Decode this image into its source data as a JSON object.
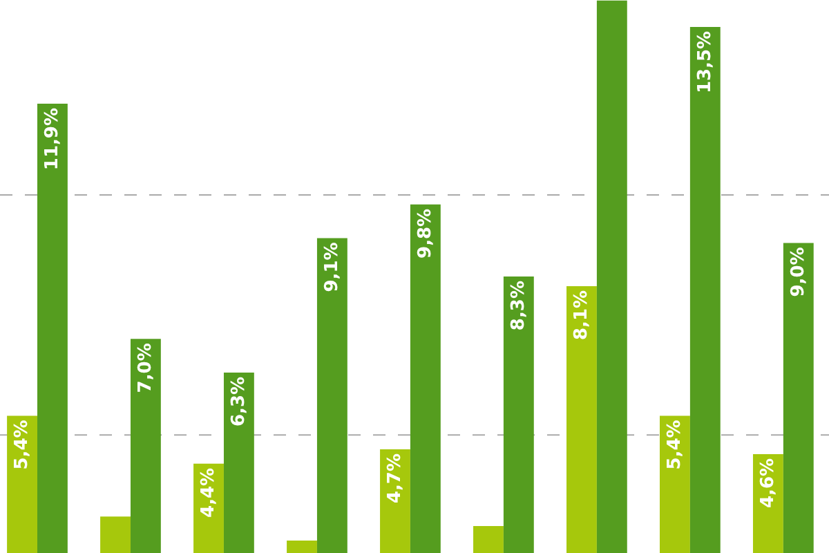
{
  "chart_data": {
    "type": "bar",
    "categories": [
      null,
      null,
      null,
      null,
      null,
      null,
      null,
      null,
      null
    ],
    "series": [
      {
        "color": "#a6c80c",
        "values": [
          5.4,
          3.3,
          4.4,
          2.8,
          4.7,
          3.1,
          8.1,
          5.4,
          4.6
        ],
        "value_labels": [
          "5,4%",
          null,
          "4,4%",
          null,
          "4,7%",
          null,
          "8,1%",
          "5,4%",
          "4,6%"
        ]
      },
      {
        "color": "#559d1f",
        "values": [
          11.9,
          7.0,
          6.3,
          9.1,
          9.8,
          8.3,
          14.05,
          13.5,
          9.0
        ],
        "value_labels": [
          "11,9%",
          "7,0%",
          "6,3%",
          "9,1%",
          "9,8%",
          "8,3%",
          null,
          "13,5%",
          "9,0%"
        ]
      }
    ],
    "ylim": [
      2.54,
      14.06
    ],
    "ref_lines": [
      {
        "axis": "y",
        "value": 5,
        "color": "#aaaaaa",
        "line_style": "dashed"
      },
      {
        "axis": "y",
        "value": 10,
        "color": "#aaaaaa",
        "line_style": "dashed"
      }
    ]
  }
}
